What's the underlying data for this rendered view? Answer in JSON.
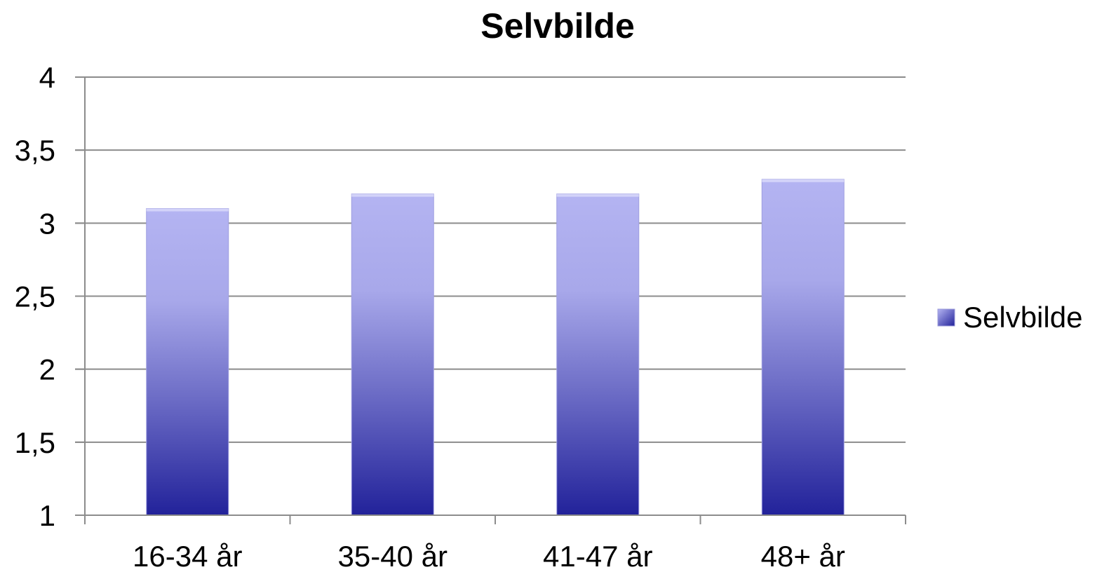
{
  "chart_data": {
    "type": "bar",
    "title": "Selvbilde",
    "xlabel": "",
    "ylabel": "",
    "categories": [
      "16-34 år",
      "35-40 år",
      "41-47 år",
      "48+ år"
    ],
    "series": [
      {
        "name": "Selvbilde",
        "values": [
          3.1,
          3.2,
          3.2,
          3.3
        ]
      }
    ],
    "ylim": [
      1,
      4
    ],
    "yticks": [
      1,
      1.5,
      2,
      2.5,
      3,
      3.5,
      4
    ],
    "ytick_labels": [
      "1",
      "1,5",
      "2",
      "2,5",
      "3",
      "3,5",
      "4"
    ],
    "grid": true,
    "legend_position": "right",
    "colors": {
      "bar_top": "#b4b4f2",
      "bar_mid": "#8888d8",
      "bar_bottom": "#22229a",
      "grid": "#8c8c8c",
      "axis": "#8c8c8c"
    }
  }
}
